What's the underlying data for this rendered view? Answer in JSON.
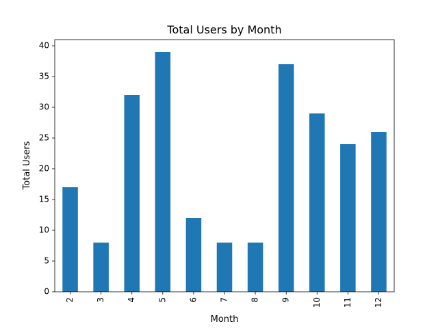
{
  "chart_data": {
    "type": "bar",
    "title": "Total Users by Month",
    "xlabel": "Month",
    "ylabel": "Total Users",
    "categories": [
      "2",
      "3",
      "4",
      "5",
      "6",
      "7",
      "8",
      "9",
      "10",
      "11",
      "12"
    ],
    "values": [
      17,
      8,
      32,
      39,
      12,
      8,
      8,
      37,
      29,
      24,
      26
    ],
    "ylim": [
      0,
      41
    ],
    "yticks": [
      0,
      5,
      10,
      15,
      20,
      25,
      30,
      35,
      40
    ],
    "grid": false,
    "bar_color": "#1f77b4",
    "x_tick_rotation": 90
  }
}
